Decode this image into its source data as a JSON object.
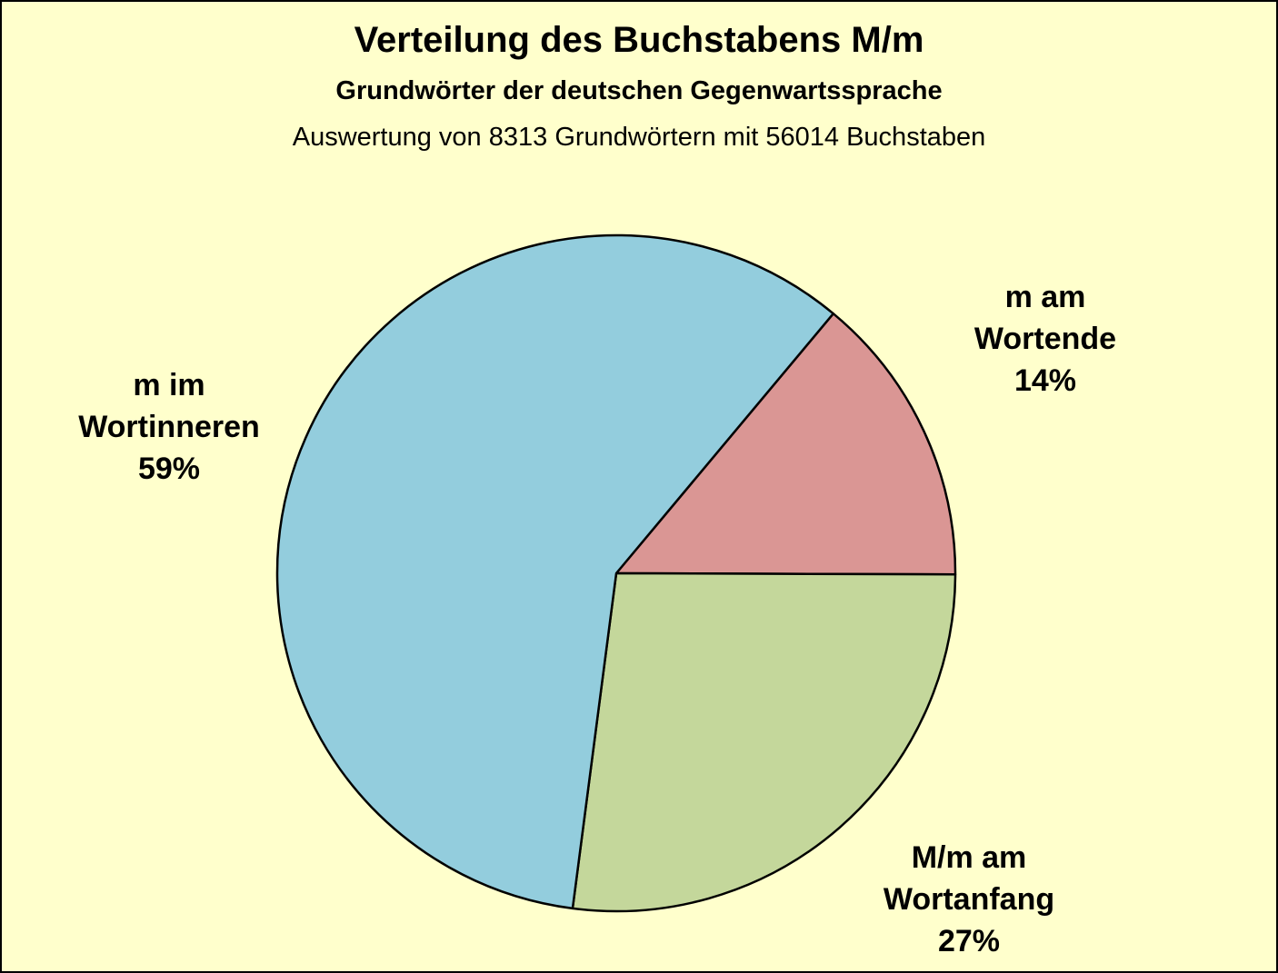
{
  "chart_data": {
    "type": "pie",
    "title": "Verteilung des Buchstabens M/m",
    "subtitle": "Grundwörter der deutschen Gegenwartssprache",
    "note": "Auswertung von 8313 Grundwörtern mit 56014 Buchstaben",
    "slices": [
      {
        "label_lines": [
          "m am",
          "Wortende"
        ],
        "percent_label": "14%",
        "value": 14,
        "color": "#da9694"
      },
      {
        "label_lines": [
          "M/m am",
          "Wortanfang"
        ],
        "percent_label": "27%",
        "value": 27,
        "color": "#c4d79b"
      },
      {
        "label_lines": [
          "m im",
          "Wortinneren"
        ],
        "percent_label": "59%",
        "value": 59,
        "color": "#93cddd"
      }
    ],
    "legend": "none",
    "background_color": "#ffffcc"
  }
}
